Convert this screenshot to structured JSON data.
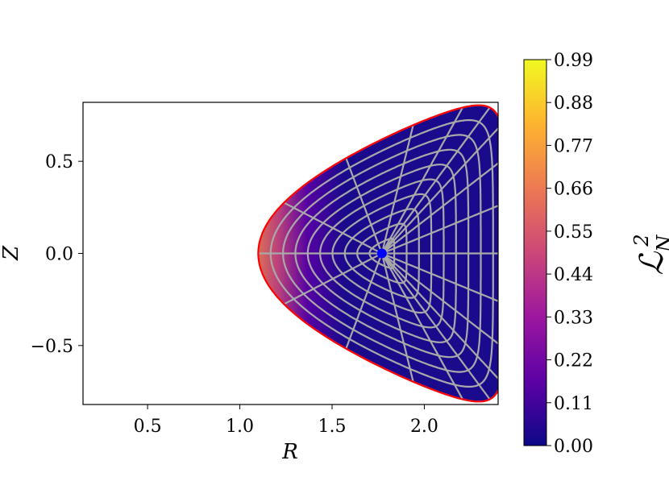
{
  "chart_data": {
    "type": "heatmap",
    "title": "",
    "xlabel": "R",
    "ylabel": "Z",
    "xlim": [
      0.15,
      2.4
    ],
    "ylim": [
      -0.82,
      0.82
    ],
    "xticks": [
      0.5,
      1.0,
      1.5,
      2.0
    ],
    "xtick_labels": [
      "0.5",
      "1.0",
      "1.5",
      "2.0"
    ],
    "yticks": [
      0.5,
      0.0,
      -0.5
    ],
    "ytick_labels": [
      "0.5",
      "0.0",
      "−0.5"
    ],
    "colorbar": {
      "label": "ℒ",
      "label_sup": "2",
      "label_sub": "N",
      "min": 0.0,
      "max": 0.99,
      "ticks": [
        "0.00",
        "0.11",
        "0.22",
        "0.33",
        "0.44",
        "0.55",
        "0.66",
        "0.77",
        "0.88",
        "0.99"
      ],
      "colormap": [
        "#0d0887",
        "#5c01a6",
        "#9c179e",
        "#cc4778",
        "#ed7953",
        "#fdb42f",
        "#f0f921"
      ]
    },
    "domain": {
      "boundary_color": "#ff0000",
      "fill_color": "#1a0a8c",
      "major_radius": 1.77,
      "minor_radius": 0.67,
      "elongation": 1.2,
      "triangularity": -0.9,
      "flux_surfaces": 10,
      "poloidal_lines": 18,
      "grid_color": "#a9a9a9"
    },
    "magnetic_axis": {
      "R": 1.77,
      "Z": 0.0,
      "color": "#0000ff"
    }
  }
}
